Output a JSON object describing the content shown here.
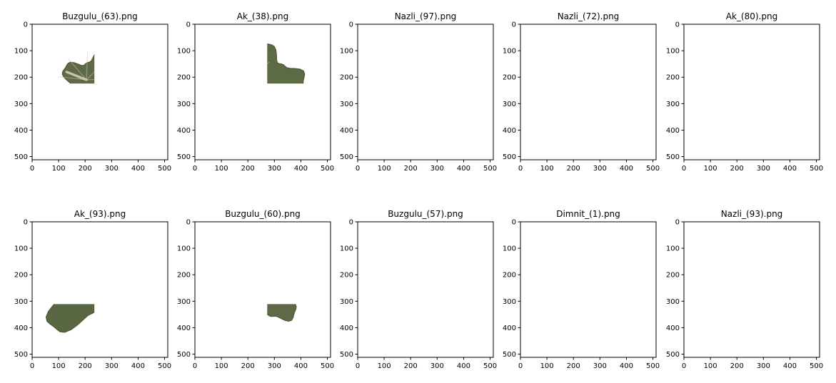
{
  "figure": {
    "panels": [
      {
        "title": "Buzgulu_(63).png",
        "leaf_color": "#5f6b48",
        "vein_color": "#c9c4a6"
      },
      {
        "title": "Ak_(38).png",
        "leaf_color": "#5d6a46",
        "vein_color": "#cfc8a8"
      },
      {
        "title": "Nazli_(97).png",
        "leaf_color": "#636e4c",
        "vein_color": "#d3cdb0"
      },
      {
        "title": "Nazli_(72).png",
        "leaf_color": "#627047",
        "vein_color": "#d1cba9"
      },
      {
        "title": "Ak_(80).png",
        "leaf_color": "#5b6845",
        "vein_color": "#cdc7a4"
      },
      {
        "title": "Ak_(93).png",
        "leaf_color": "#5a6743",
        "vein_color": "#cfc8a6"
      },
      {
        "title": "Buzgulu_(60).png",
        "leaf_color": "#5e6a47",
        "vein_color": "#ccc5a4"
      },
      {
        "title": "Buzgulu_(57).png",
        "leaf_color": "#59653f",
        "vein_color": "#a89a86"
      },
      {
        "title": "Dimnit_(1).png",
        "leaf_color": "#617048",
        "vein_color": "#d0caa8"
      },
      {
        "title": "Nazli_(93).png",
        "leaf_color": "#5f6c48",
        "vein_color": "#a8907e"
      }
    ],
    "x_ticks": [
      "0",
      "100",
      "200",
      "300",
      "400",
      "500"
    ],
    "y_ticks": [
      "0",
      "100",
      "200",
      "300",
      "400",
      "500"
    ]
  }
}
